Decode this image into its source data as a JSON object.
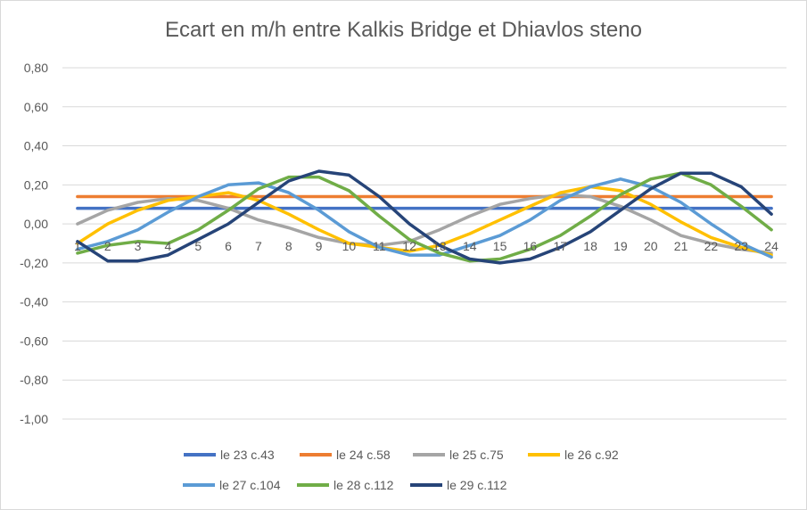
{
  "chart_data": {
    "type": "line",
    "title": "Ecart en m/h entre Kalkis Bridge et Dhiavlos steno",
    "xlabel": "",
    "ylabel": "",
    "categories": [
      "1",
      "2",
      "3",
      "4",
      "5",
      "6",
      "7",
      "8",
      "9",
      "10",
      "11",
      "12",
      "13",
      "14",
      "15",
      "16",
      "17",
      "18",
      "19",
      "20",
      "21",
      "22",
      "23",
      "24"
    ],
    "ylim": [
      -1.0,
      0.8
    ],
    "y_ticks": [
      0.8,
      0.6,
      0.4,
      0.2,
      0.0,
      -0.2,
      -0.4,
      -0.6,
      -0.8,
      -1.0
    ],
    "y_tick_labels": [
      "0,80",
      "0,60",
      "0,40",
      "0,20",
      "0,00",
      "-0,20",
      "-0,40",
      "-0,60",
      "-0,80",
      "-1,00"
    ],
    "grid": true,
    "legend_position": "bottom",
    "series": [
      {
        "name": "le 23 c.43",
        "color": "#4472c4",
        "values": [
          0.08,
          0.08,
          0.08,
          0.08,
          0.08,
          0.08,
          0.08,
          0.08,
          0.08,
          0.08,
          0.08,
          0.08,
          0.08,
          0.08,
          0.08,
          0.08,
          0.08,
          0.08,
          0.08,
          0.08,
          0.08,
          0.08,
          0.08,
          0.08
        ]
      },
      {
        "name": "le 24 c.58",
        "color": "#ed7d31",
        "values": [
          0.14,
          0.14,
          0.14,
          0.14,
          0.14,
          0.14,
          0.14,
          0.14,
          0.14,
          0.14,
          0.14,
          0.14,
          0.14,
          0.14,
          0.14,
          0.14,
          0.14,
          0.14,
          0.14,
          0.14,
          0.14,
          0.14,
          0.14,
          0.14
        ]
      },
      {
        "name": "le 25 c.75",
        "color": "#a5a5a5",
        "values": [
          0.0,
          0.07,
          0.11,
          0.13,
          0.12,
          0.08,
          0.02,
          -0.02,
          -0.07,
          -0.1,
          -0.11,
          -0.09,
          -0.03,
          0.04,
          0.1,
          0.13,
          0.15,
          0.14,
          0.09,
          0.02,
          -0.06,
          -0.1,
          -0.13,
          -0.15
        ]
      },
      {
        "name": "le 26 c.92",
        "color": "#ffc000",
        "values": [
          -0.1,
          0.0,
          0.07,
          0.12,
          0.14,
          0.16,
          0.12,
          0.05,
          -0.03,
          -0.1,
          -0.12,
          -0.14,
          -0.11,
          -0.05,
          0.02,
          0.09,
          0.16,
          0.19,
          0.17,
          0.1,
          0.01,
          -0.07,
          -0.12,
          -0.16
        ]
      },
      {
        "name": "le 27 c.104",
        "color": "#5b9bd5",
        "values": [
          -0.13,
          -0.09,
          -0.03,
          0.06,
          0.14,
          0.2,
          0.21,
          0.16,
          0.07,
          -0.04,
          -0.12,
          -0.16,
          -0.16,
          -0.11,
          -0.06,
          0.02,
          0.12,
          0.19,
          0.23,
          0.19,
          0.11,
          0.0,
          -0.1,
          -0.17
        ]
      },
      {
        "name": "le 28 c.112",
        "color": "#70ad47",
        "values": [
          -0.15,
          -0.11,
          -0.09,
          -0.1,
          -0.03,
          0.07,
          0.18,
          0.24,
          0.24,
          0.17,
          0.04,
          -0.08,
          -0.15,
          -0.19,
          -0.18,
          -0.13,
          -0.06,
          0.04,
          0.15,
          0.23,
          0.26,
          0.2,
          0.09,
          -0.03
        ]
      },
      {
        "name": "le 29 c.112",
        "color": "#264478",
        "values": [
          -0.09,
          -0.19,
          -0.19,
          -0.16,
          -0.08,
          0.0,
          0.11,
          0.22,
          0.27,
          0.25,
          0.14,
          0.0,
          -0.11,
          -0.18,
          -0.2,
          -0.18,
          -0.12,
          -0.04,
          0.07,
          0.18,
          0.26,
          0.26,
          0.19,
          0.05
        ]
      }
    ]
  }
}
